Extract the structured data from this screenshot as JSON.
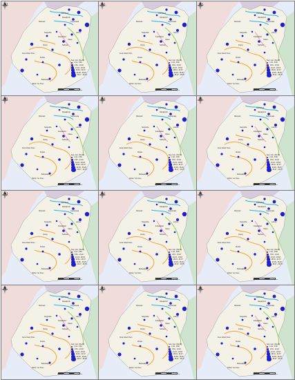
{
  "colors": {
    "land": "#f4f1e7",
    "ocean": "#e6ecf8",
    "neighbor_left": "#f1dcdc",
    "neighbor_right": "#cfe4cf",
    "neighbor_top": "#d8ccdc",
    "river_blue": "#2ab0e8",
    "river_orange": "#f2a43a",
    "river_green": "#8fcf5a",
    "river_pink": "#e8a0b8",
    "symbol": "#1f1fc8",
    "panel_border": "#777777"
  },
  "panels": [
    {
      "label": "(a)",
      "legend_title": "Sep. Con. (Pa.30)",
      "legend_items": [
        "1.34 - 9.80",
        "9.81 - 13.22",
        "13.23 - 18.63",
        "18.64 - 24.37",
        "24.38 - 36.26",
        "36.27 - 48.75"
      ]
    },
    {
      "label": "(b)",
      "legend_title": "Sep. Con. (Pa.30)",
      "legend_items": [
        "1.34 - 9.80",
        "9.81 - 13.22",
        "13.23 - 18.63",
        "18.64 - 24.37",
        "24.38 - 36.26",
        "36.27 - 48.75"
      ]
    },
    {
      "label": "(c)",
      "legend_title": "Sep. Con. (Pa.30)",
      "legend_items": [
        "1.34 - 9.80",
        "9.81 - 13.22",
        "13.23 - 18.63",
        "18.64 - 24.37",
        "24.38 - 36.26",
        "36.27 - 48.75"
      ]
    },
    {
      "label": "(d)",
      "legend_title": "Sep. Con. (Pa.30)",
      "legend_items": [
        "1.34 - 9.80",
        "9.81 - 13.22",
        "13.23 - 18.63",
        "18.64 - 24.37",
        "24.38 - 36.26",
        "36.27 - 48.75"
      ]
    },
    {
      "label": "(e)",
      "legend_title": "Sep. Con. (Pa.30)",
      "legend_items": [
        "1.34 - 9.80",
        "9.81 - 13.22",
        "13.23 - 18.63",
        "18.64 - 24.37",
        "24.38 - 36.26",
        "36.27 - 48.75"
      ]
    },
    {
      "label": "(f)",
      "legend_title": "Sep. Con. (Pa.30)",
      "legend_items": [
        "1.34 - 9.80",
        "9.81 - 13.22",
        "13.23 - 18.63",
        "18.64 - 24.37",
        "24.38 - 36.26",
        "36.27 - 48.75"
      ]
    },
    {
      "label": "(g)",
      "legend_title": "Sep. Con. (Pa.30)",
      "legend_items": [
        "1.34 - 9.80",
        "9.81 - 13.22",
        "13.23 - 18.63",
        "18.64 - 24.37",
        "24.38 - 36.26",
        "36.27 - 48.75"
      ]
    },
    {
      "label": "(h)",
      "legend_title": "Sep. Con. (Pa.30)",
      "legend_items": [
        "1.34 - 9.80",
        "9.81 - 13.22",
        "13.23 - 18.63",
        "18.64 - 24.37",
        "24.38 - 36.26",
        "36.27 - 48.75"
      ]
    },
    {
      "label": "(i)",
      "legend_title": "Sep. Con. (Pa.30)",
      "legend_items": [
        "1.34 - 9.80",
        "9.81 - 13.22",
        "13.23 - 18.63",
        "18.64 - 24.37",
        "24.38 - 36.26",
        "36.27 - 48.75"
      ]
    },
    {
      "label": "(j)",
      "legend_title": "Sep. Con. (Pa.30)",
      "legend_items": [
        "1.34 - 9.80",
        "9.81 - 13.22",
        "13.23 - 18.63",
        "18.64 - 24.37",
        "24.38 - 36.26",
        "36.27 - 48.75"
      ]
    },
    {
      "label": "(k)",
      "legend_title": "Sep. Con. (Pa.30)",
      "legend_items": [
        "1.34 - 9.80",
        "9.81 - 13.22",
        "13.23 - 18.63",
        "18.64 - 24.37",
        "24.38 - 36.26",
        "36.27 - 48.75"
      ]
    },
    {
      "label": "(l)",
      "legend_title": "Sep. Con. (Pa.30)",
      "legend_items": [
        "1.34 - 9.80",
        "9.81 - 13.22",
        "13.23 - 18.63",
        "18.64 - 24.37",
        "24.38 - 36.26",
        "36.27 - 48.75"
      ]
    }
  ],
  "place_names": [
    "Islamabad",
    "Rawalpindi",
    "Gujranwala",
    "Lahore",
    "Faisalabad",
    "Sargodha",
    "Jhang",
    "Multan",
    "Dera Ghazi Khan",
    "Bahawalpur",
    "Sahiwal",
    "Rahim Yar Khan",
    "Mianwali",
    "Okara"
  ],
  "scale_labels": [
    "0",
    "50",
    "100",
    "200 km"
  ]
}
